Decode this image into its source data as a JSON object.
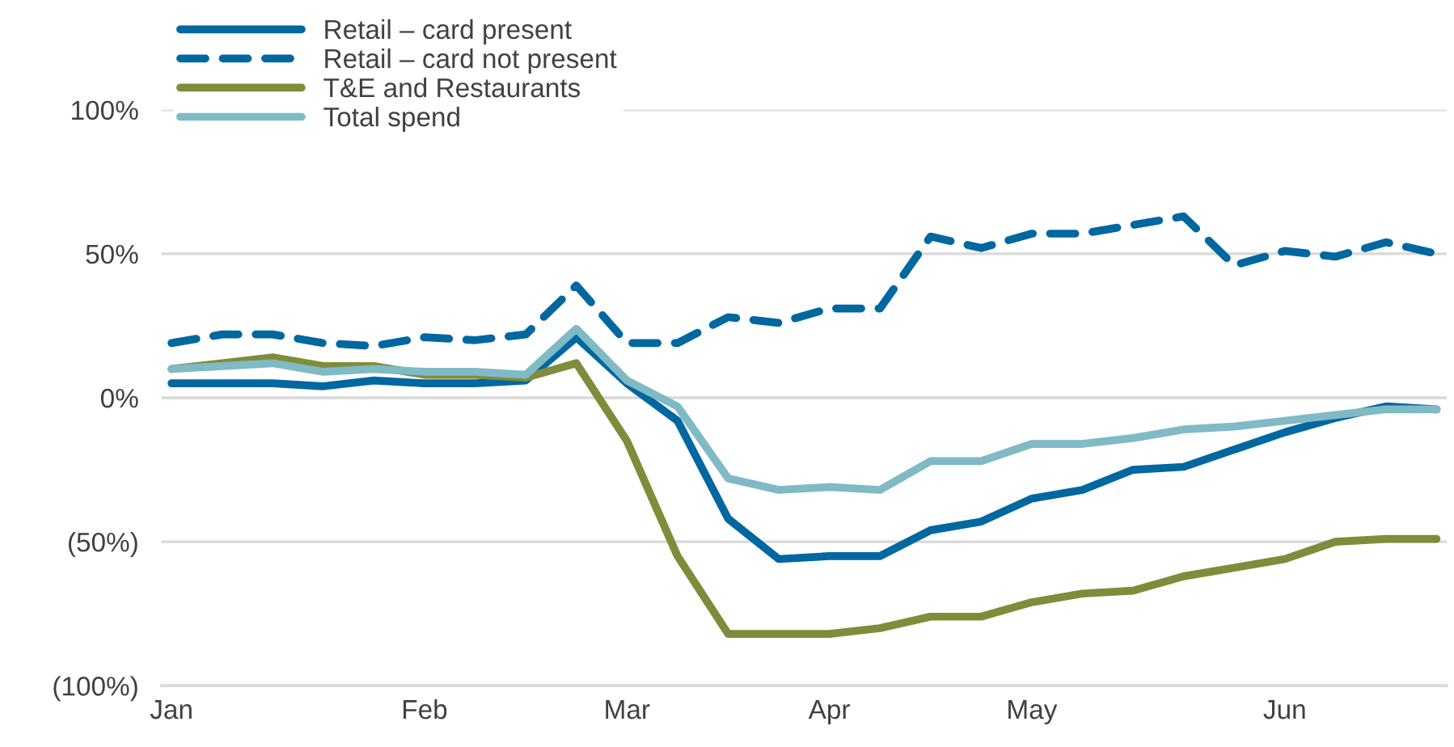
{
  "chart_data": {
    "type": "line",
    "categories": [
      "Jan",
      null,
      null,
      null,
      null,
      "Feb",
      null,
      null,
      null,
      "Mar",
      null,
      null,
      null,
      "Apr",
      null,
      null,
      null,
      "May",
      null,
      null,
      null,
      null,
      "Jun",
      null,
      null,
      null
    ],
    "series": [
      {
        "name": "Retail – card present",
        "color": "#0067a0",
        "line_style": "solid",
        "values": [
          5,
          5,
          5,
          4,
          6,
          5,
          5,
          6,
          21,
          5,
          -8,
          -42,
          -56,
          -55,
          -55,
          -46,
          -43,
          -35,
          -32,
          -25,
          -24,
          -18,
          -12,
          -7,
          -3,
          -4
        ]
      },
      {
        "name": "Retail – card not present",
        "color": "#0067a0",
        "line_style": "dashed",
        "values": [
          19,
          22,
          22,
          19,
          18,
          21,
          20,
          22,
          39,
          19,
          19,
          28,
          26,
          31,
          31,
          56,
          52,
          57,
          57,
          60,
          63,
          46,
          51,
          49,
          54,
          50
        ]
      },
      {
        "name": "T&E and Restaurants",
        "color": "#7f8c3a",
        "line_style": "solid",
        "values": [
          10,
          12,
          14,
          11,
          11,
          8,
          8,
          7,
          12,
          -15,
          -55,
          -82,
          -82,
          -82,
          -80,
          -76,
          -76,
          -71,
          -68,
          -67,
          -62,
          -59,
          -56,
          -50,
          -49,
          -49
        ]
      },
      {
        "name": "Total spend",
        "color": "#7fbac5",
        "line_style": "solid",
        "values": [
          10,
          11,
          12,
          9,
          10,
          9,
          9,
          8,
          24,
          6,
          -3,
          -28,
          -32,
          -31,
          -32,
          -22,
          -22,
          -16,
          -16,
          -14,
          -11,
          -10,
          -8,
          -6,
          -4,
          -4
        ]
      }
    ],
    "ylim": [
      -100,
      100
    ],
    "yticks": [
      {
        "value": -100,
        "label": "(100%)"
      },
      {
        "value": -50,
        "label": "(50%)"
      },
      {
        "value": 0,
        "label": "0%"
      },
      {
        "value": 50,
        "label": "50%"
      },
      {
        "value": 100,
        "label": "100%"
      }
    ],
    "grid": "y",
    "legend": "top left",
    "marker": "none"
  }
}
